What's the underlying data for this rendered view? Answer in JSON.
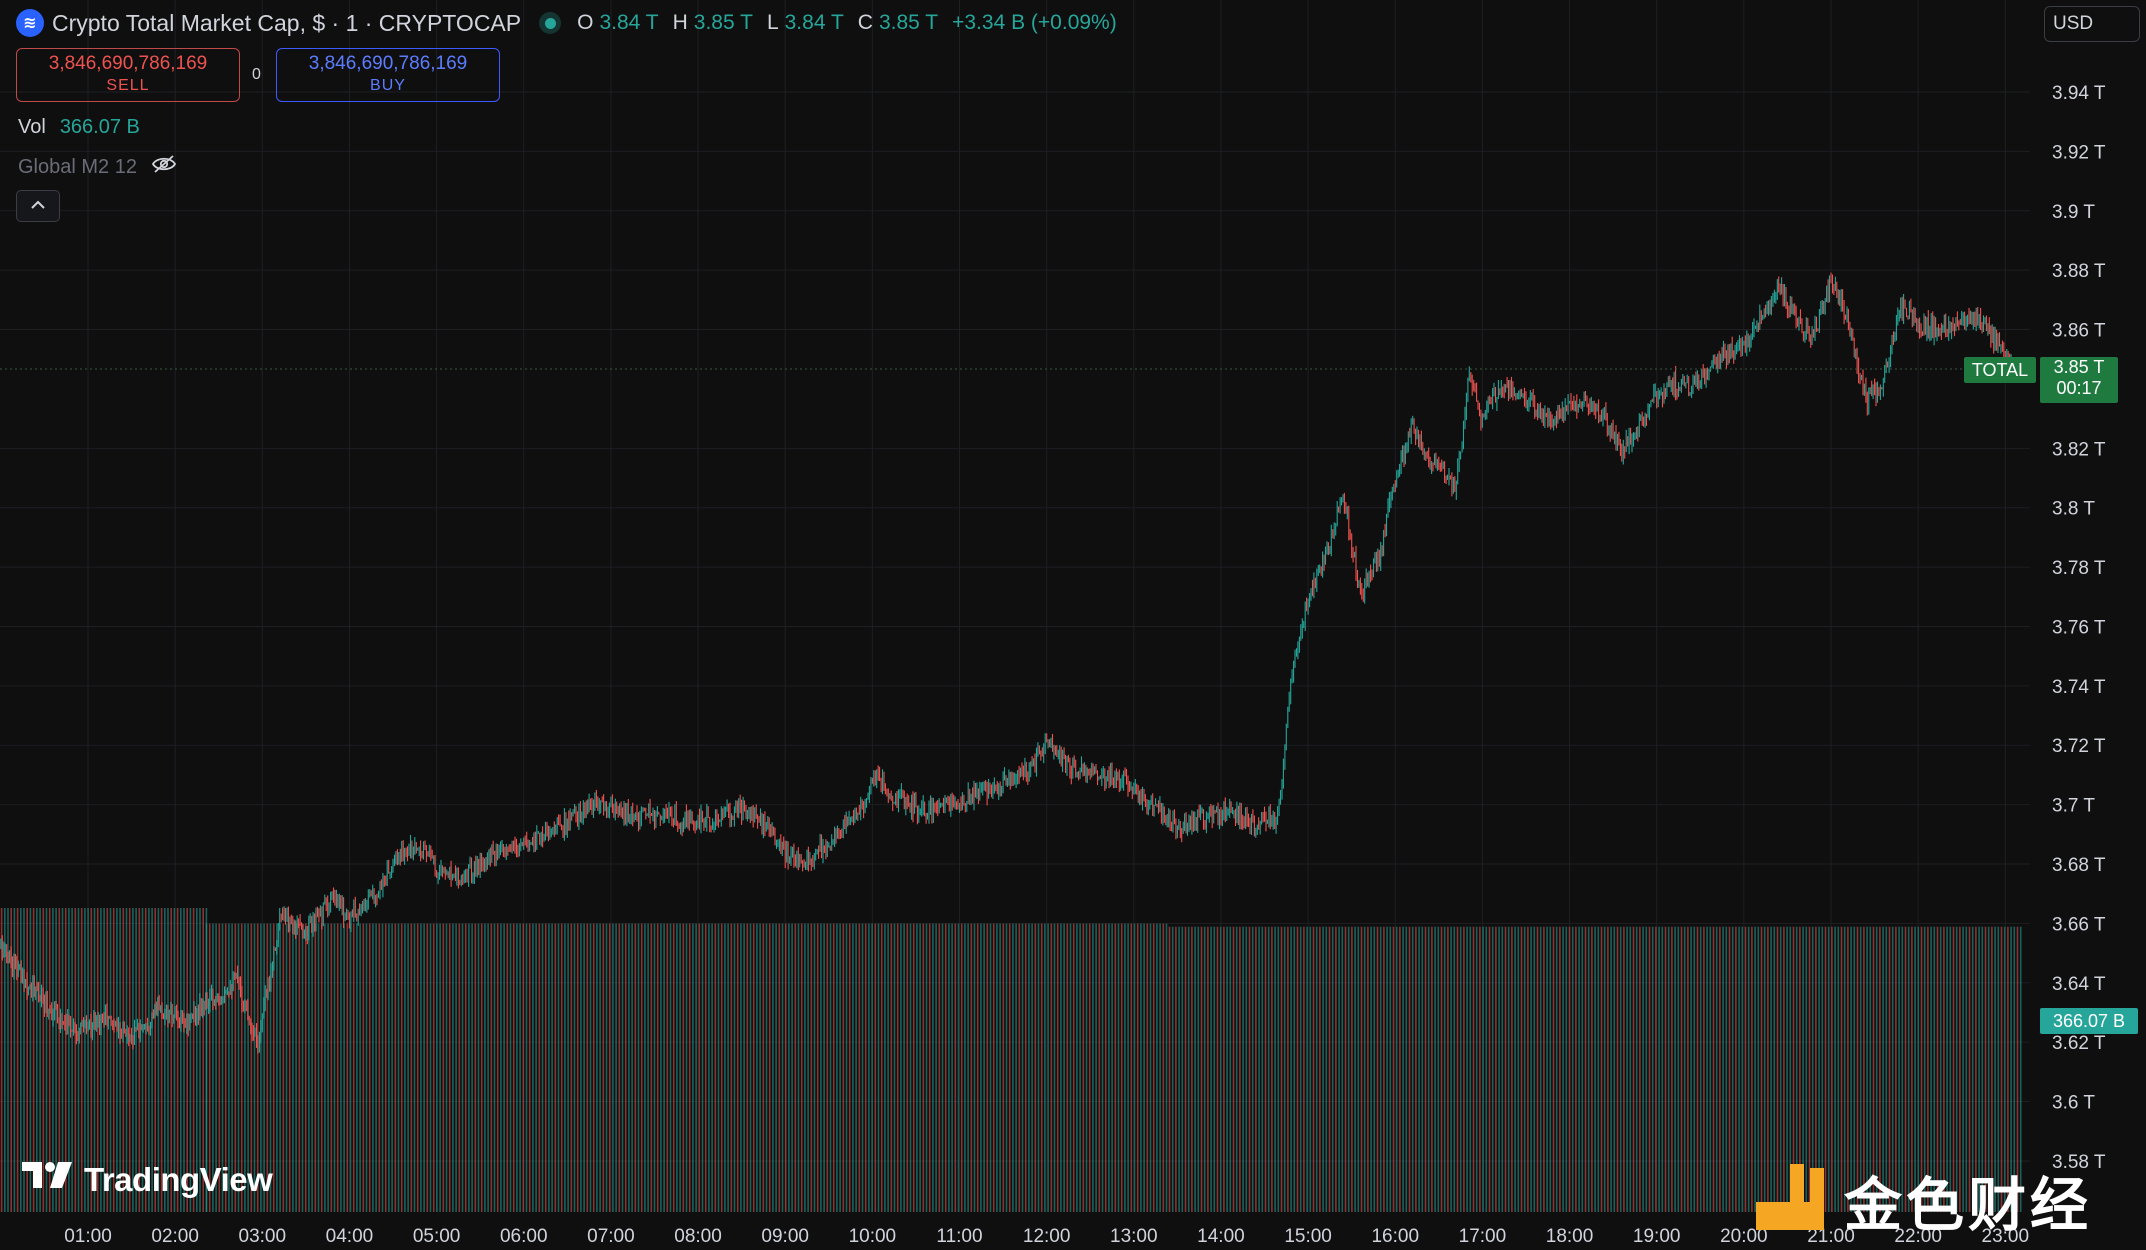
{
  "header": {
    "symbol_title": "Crypto Total Market Cap, $ · 1 · CRYPTOCAP",
    "open_label": "O",
    "open": "3.84 T",
    "high_label": "H",
    "high": "3.85 T",
    "low_label": "L",
    "low": "3.84 T",
    "close_label": "C",
    "close": "3.85 T",
    "change": "+3.34 B (+0.09%)"
  },
  "trade": {
    "sell_price": "3,846,690,786,169",
    "sell_label": "SELL",
    "spread": "0",
    "buy_price": "3,846,690,786,169",
    "buy_label": "BUY"
  },
  "indicators": {
    "vol_label": "Vol",
    "vol_value": "366.07 B",
    "m2_label": "Global M2 12"
  },
  "currency": "USD",
  "tags": {
    "series_name": "TOTAL",
    "last_price": "3.85 T",
    "countdown": "00:17",
    "volume": "366.07 B"
  },
  "branding": {
    "tradingview": "TradingView",
    "watermark": "金色财经"
  },
  "colors": {
    "up": "#26a69a",
    "down": "#ef5350",
    "background": "#0f0f0f",
    "grid": "#1e1f23",
    "text": "#d1d4dc",
    "tag": "#1e7a3e"
  },
  "chart_data": {
    "type": "line",
    "subtype": "candlestick-with-volume",
    "y_axis": {
      "unit": "T",
      "ylim": [
        3.57,
        3.96
      ],
      "ticks": [
        "3.94 T",
        "3.92 T",
        "3.9 T",
        "3.88 T",
        "3.86 T",
        "3.82 T",
        "3.8 T",
        "3.78 T",
        "3.76 T",
        "3.74 T",
        "3.72 T",
        "3.7 T",
        "3.68 T",
        "3.66 T",
        "3.64 T",
        "3.62 T",
        "3.6 T",
        "3.58 T"
      ],
      "tick_values": [
        3.94,
        3.92,
        3.9,
        3.88,
        3.86,
        3.82,
        3.8,
        3.78,
        3.76,
        3.74,
        3.72,
        3.7,
        3.68,
        3.66,
        3.64,
        3.62,
        3.6,
        3.58
      ]
    },
    "x_axis": {
      "ticks": [
        "01:00",
        "02:00",
        "03:00",
        "04:00",
        "05:00",
        "06:00",
        "07:00",
        "08:00",
        "09:00",
        "10:00",
        "11:00",
        "12:00",
        "13:00",
        "14:00",
        "15:00",
        "16:00",
        "17:00",
        "18:00",
        "19:00",
        "20:00",
        "21:00",
        "22:00",
        "23:00"
      ],
      "tick_hours": [
        1,
        2,
        3,
        4,
        5,
        6,
        7,
        8,
        9,
        10,
        11,
        12,
        13,
        14,
        15,
        16,
        17,
        18,
        19,
        20,
        21,
        22,
        23
      ],
      "xlim_hours": [
        0.0,
        23.3
      ]
    },
    "grid": true,
    "series": [
      {
        "name": "TOTAL",
        "x": [
          0.0,
          0.3,
          0.6,
          0.9,
          1.2,
          1.5,
          1.8,
          2.1,
          2.4,
          2.7,
          2.95,
          3.2,
          3.5,
          3.8,
          4.0,
          4.3,
          4.6,
          4.85,
          5.0,
          5.3,
          5.6,
          5.9,
          6.2,
          6.5,
          6.8,
          7.0,
          7.3,
          7.6,
          7.9,
          8.2,
          8.5,
          8.8,
          9.0,
          9.3,
          9.6,
          9.9,
          10.0,
          10.3,
          10.6,
          10.9,
          11.2,
          11.5,
          11.8,
          12.0,
          12.3,
          12.6,
          12.9,
          13.2,
          13.5,
          13.8,
          14.1,
          14.4,
          14.65,
          14.8,
          15.0,
          15.2,
          15.4,
          15.6,
          15.8,
          16.0,
          16.2,
          16.4,
          16.55,
          16.7,
          16.85,
          17.0,
          17.2,
          17.4,
          17.6,
          17.8,
          18.0,
          18.2,
          18.4,
          18.6,
          18.8,
          19.0,
          19.2,
          19.4,
          19.6,
          19.8,
          20.0,
          20.2,
          20.4,
          20.6,
          20.8,
          21.0,
          21.2,
          21.4,
          21.6,
          21.8,
          22.0,
          22.2,
          22.4,
          22.6,
          22.8,
          23.0,
          23.15
        ],
        "values": [
          3.652,
          3.64,
          3.63,
          3.624,
          3.628,
          3.622,
          3.631,
          3.626,
          3.634,
          3.641,
          3.62,
          3.662,
          3.657,
          3.668,
          3.662,
          3.67,
          3.684,
          3.686,
          3.678,
          3.676,
          3.682,
          3.685,
          3.69,
          3.694,
          3.7,
          3.698,
          3.696,
          3.697,
          3.694,
          3.695,
          3.699,
          3.692,
          3.683,
          3.682,
          3.69,
          3.7,
          3.71,
          3.702,
          3.698,
          3.7,
          3.704,
          3.708,
          3.712,
          3.72,
          3.712,
          3.71,
          3.708,
          3.7,
          3.692,
          3.696,
          3.698,
          3.694,
          3.696,
          3.74,
          3.77,
          3.782,
          3.805,
          3.77,
          3.782,
          3.81,
          3.828,
          3.815,
          3.812,
          3.808,
          3.845,
          3.83,
          3.841,
          3.838,
          3.835,
          3.828,
          3.834,
          3.836,
          3.83,
          3.819,
          3.827,
          3.838,
          3.842,
          3.84,
          3.846,
          3.852,
          3.855,
          3.865,
          3.874,
          3.862,
          3.858,
          3.876,
          3.862,
          3.836,
          3.842,
          3.868,
          3.862,
          3.86,
          3.862,
          3.866,
          3.86,
          3.85,
          3.847
        ]
      }
    ],
    "volume": {
      "name": "Vol",
      "segments": [
        {
          "from_hour": 0.0,
          "to_hour": 2.35,
          "value_B": 390
        },
        {
          "from_hour": 2.35,
          "to_hour": 13.4,
          "value_B": 370
        },
        {
          "from_hour": 13.4,
          "to_hour": 23.2,
          "value_B": 366.07
        }
      ]
    },
    "last_price_line": 3.8467
  }
}
